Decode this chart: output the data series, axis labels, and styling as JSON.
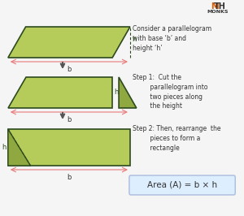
{
  "bg_color": "#f5f5f5",
  "parallelogram_fill": "#b5cc5a",
  "parallelogram_fill_dark": "#8fa840",
  "dark_green_outline": "#2d4a1e",
  "pink_arrow": "#e8a0a0",
  "pink_line": "#e87878",
  "text_color": "#333333",
  "formula_bg": "#ddeeff",
  "formula_border": "#aabbdd",
  "math_orange": "#e05a00",
  "title_text": "Consider a parallelogram\nwith base ‘b’ and\nheight ‘h’",
  "step1_text": "Step 1:  Cut the\n         parallelogram into\n         two pieces along\n         the height",
  "step2_text": "Step 2: Then, rearrange  the\n         pieces to form a\n         rectangle",
  "formula_text": "Area (A) = b × h"
}
